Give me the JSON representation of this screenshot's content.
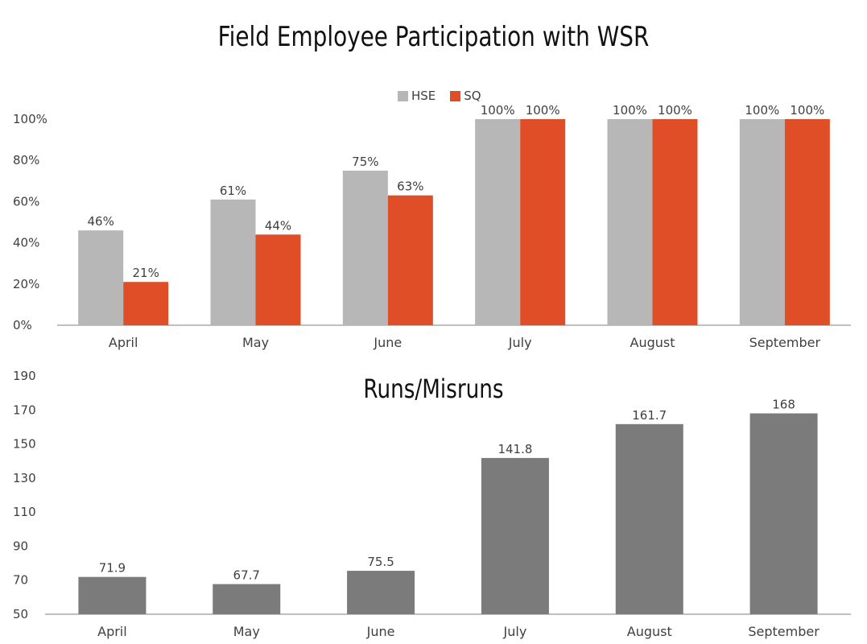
{
  "colors": {
    "hse": "#b7b7b7",
    "sq": "#e04e28",
    "runs": "#7b7b7b",
    "axis": "#bfbfbf",
    "text": "#404040"
  },
  "chart_data": [
    {
      "type": "bar",
      "title": "Field Employee Participation with WSR",
      "categories": [
        "April",
        "May",
        "June",
        "July",
        "August",
        "September"
      ],
      "series": [
        {
          "name": "HSE",
          "values": [
            46,
            61,
            75,
            100,
            100,
            100
          ],
          "labels": [
            "46%",
            "61%",
            "75%",
            "100%",
            "100%",
            "100%"
          ]
        },
        {
          "name": "SQ",
          "values": [
            21,
            44,
            63,
            100,
            100,
            100
          ],
          "labels": [
            "21%",
            "44%",
            "63%",
            "100%",
            "100%",
            "100%"
          ]
        }
      ],
      "ylim": [
        0,
        100
      ],
      "yticks": [
        0,
        20,
        40,
        60,
        80,
        100
      ],
      "ytick_labels": [
        "0%",
        "20%",
        "40%",
        "60%",
        "80%",
        "100%"
      ],
      "legend": "top-center",
      "grid": false
    },
    {
      "type": "bar",
      "title": "Runs/Misruns",
      "categories": [
        "April",
        "May",
        "June",
        "July",
        "August",
        "September"
      ],
      "series": [
        {
          "values": [
            71.9,
            67.7,
            75.5,
            141.8,
            161.7,
            168
          ],
          "labels": [
            "71.9",
            "67.7",
            "75.5",
            "141.8",
            "161.7",
            "168"
          ]
        }
      ],
      "ylim": [
        50,
        190
      ],
      "yticks": [
        50,
        70,
        90,
        110,
        130,
        150,
        170,
        190
      ],
      "ytick_labels": [
        "50",
        "70",
        "90",
        "110",
        "130",
        "150",
        "170",
        "190"
      ],
      "legend": "none",
      "grid": false
    }
  ]
}
